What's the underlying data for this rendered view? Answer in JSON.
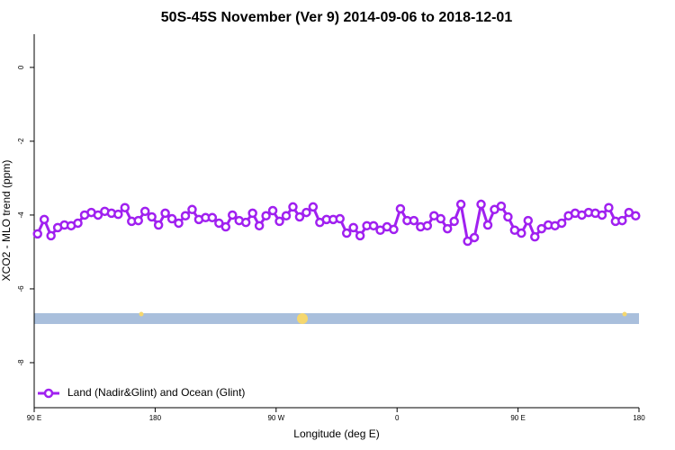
{
  "chart_data": {
    "type": "line",
    "title": "50S-45S November (Ver 9)   2014-09-06 to 2018-12-01",
    "x_label": "Longitude (deg E)",
    "y_label": "XCO2 - MLO trend (ppm)",
    "xlim": [
      90,
      540
    ],
    "ylim": [
      -9.22,
      0.9
    ],
    "xticks": [
      {
        "value": 90,
        "label": "90 E"
      },
      180,
      {
        "value": 270,
        "label": "90 W"
      },
      {
        "value": 360,
        "label": "0"
      },
      {
        "value": 450,
        "label": "90 E"
      },
      {
        "value": 540,
        "label": "180"
      }
    ],
    "yticks": [
      0,
      -2,
      -4,
      -6,
      -8
    ],
    "legend": "bottom-left",
    "x": [
      92.5,
      97.5,
      102.5,
      107.5,
      112.5,
      117.5,
      122.5,
      127.5,
      132.5,
      137.5,
      142.5,
      147.5,
      152.5,
      157.5,
      162.5,
      167.5,
      172.5,
      177.5,
      182.5,
      187.5,
      192.5,
      197.5,
      202.5,
      207.5,
      212.5,
      217.5,
      222.5,
      227.5,
      232.5,
      237.5,
      242.5,
      247.5,
      252.5,
      257.5,
      262.5,
      267.5,
      272.5,
      277.5,
      282.5,
      287.5,
      292.5,
      297.5,
      302.5,
      307.5,
      312.5,
      317.5,
      322.5,
      327.5,
      332.5,
      337.5,
      342.5,
      347.5,
      352.5,
      357.5,
      362.5,
      367.5,
      372.5,
      377.5,
      382.5,
      387.5,
      392.5,
      397.5,
      402.5,
      407.5,
      412.5,
      417.5,
      422.5,
      427.5,
      432.5,
      437.5,
      442.5,
      447.5,
      452.5,
      457.5,
      462.5,
      467.5,
      472.5,
      477.5,
      482.5,
      487.5,
      492.5,
      497.5,
      502.5,
      507.5,
      512.5,
      517.5,
      522.5,
      527.5,
      532.5,
      537.5
    ],
    "series": [
      {
        "name": "Land (Nadir&Glint) and Ocean (Glint)",
        "color": "#a020f0",
        "values": [
          -4.51,
          -4.12,
          -4.56,
          -4.34,
          -4.27,
          -4.29,
          -4.22,
          -4.0,
          -3.93,
          -4.0,
          -3.9,
          -3.95,
          -3.98,
          -3.8,
          -4.17,
          -4.15,
          -3.9,
          -4.05,
          -4.27,
          -3.95,
          -4.1,
          -4.22,
          -4.02,
          -3.85,
          -4.12,
          -4.07,
          -4.07,
          -4.22,
          -4.32,
          -4.0,
          -4.15,
          -4.2,
          -3.95,
          -4.29,
          -4.02,
          -3.88,
          -4.17,
          -4.02,
          -3.78,
          -4.05,
          -3.93,
          -3.78,
          -4.2,
          -4.12,
          -4.12,
          -4.1,
          -4.49,
          -4.34,
          -4.56,
          -4.29,
          -4.29,
          -4.41,
          -4.32,
          -4.39,
          -3.83,
          -4.15,
          -4.15,
          -4.32,
          -4.29,
          -4.02,
          -4.1,
          -4.37,
          -4.17,
          -3.71,
          -4.71,
          -4.61,
          -3.71,
          -4.27,
          -3.85,
          -3.76,
          -4.05,
          -4.41,
          -4.49,
          -4.15,
          -4.59,
          -4.37,
          -4.27,
          -4.29,
          -4.22,
          -4.02,
          -3.95,
          -4.0,
          -3.93,
          -3.95,
          -4.0,
          -3.8,
          -4.17,
          -4.15,
          -3.93,
          -4.02
        ]
      }
    ]
  }
}
